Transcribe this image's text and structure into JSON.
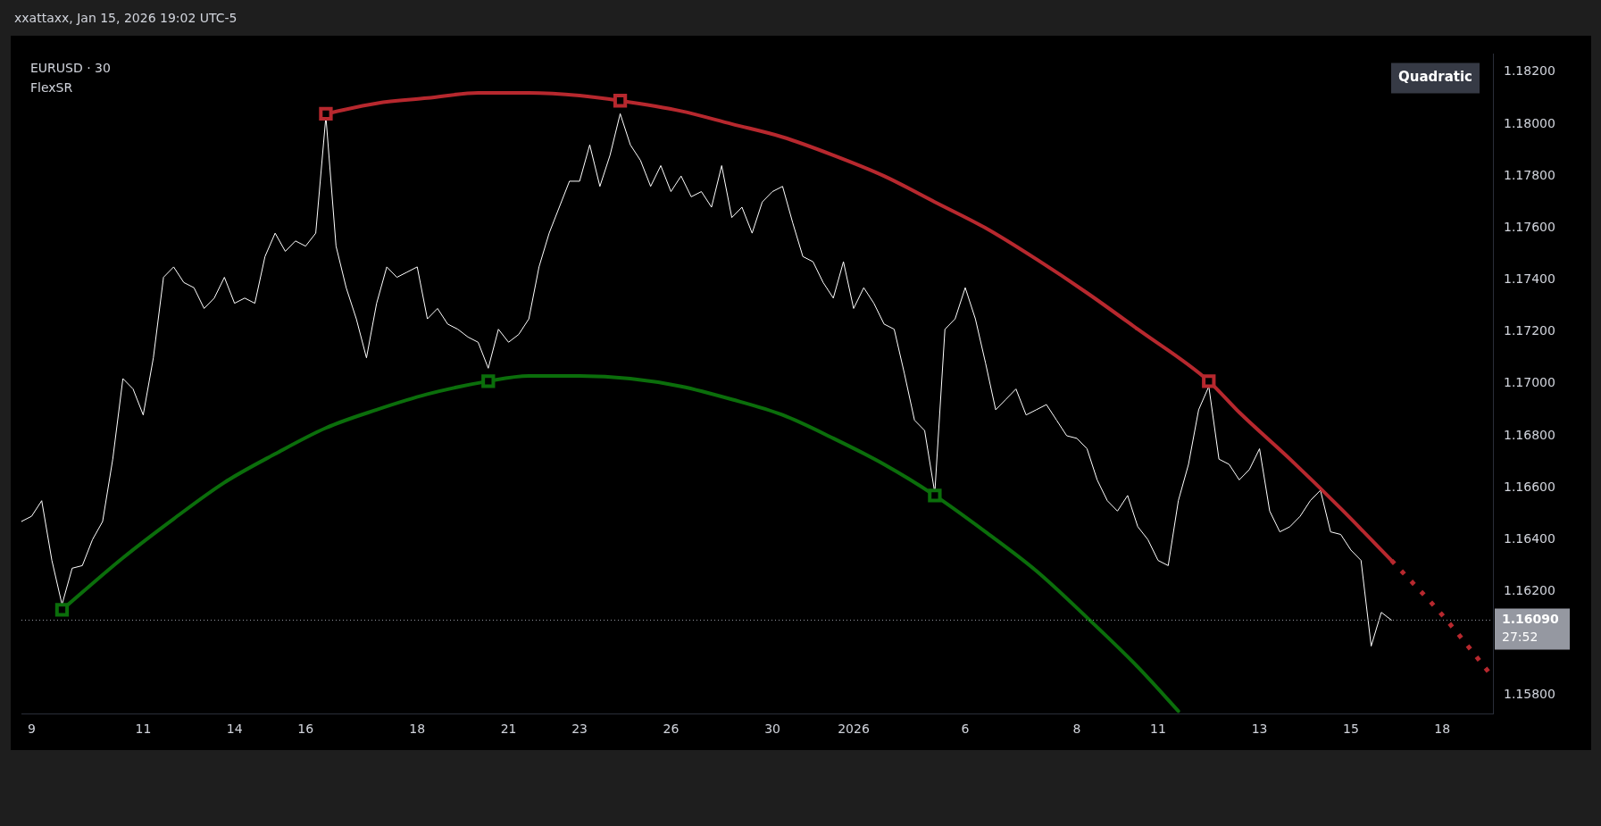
{
  "chart_data": {
    "type": "line",
    "title": "EURUSD · 30",
    "subtitle": "FlexSR",
    "annotations": [
      "xxattaxx, Jan 15, 2026 19:02 UTC-5",
      "Quadratic",
      "27:52"
    ],
    "categories": [
      null,
      "9",
      null,
      null,
      null,
      null,
      null,
      null,
      null,
      null,
      null,
      null,
      "11",
      null,
      null,
      null,
      null,
      null,
      null,
      null,
      null,
      "14",
      null,
      null,
      null,
      null,
      null,
      null,
      "16",
      null,
      null,
      null,
      null,
      null,
      null,
      null,
      null,
      null,
      null,
      "18",
      null,
      null,
      null,
      null,
      null,
      null,
      null,
      null,
      "21",
      null,
      null,
      null,
      null,
      null,
      null,
      "23",
      null,
      null,
      null,
      null,
      null,
      null,
      null,
      null,
      "26",
      null,
      null,
      null,
      null,
      null,
      null,
      null,
      null,
      null,
      "30",
      null,
      null,
      null,
      null,
      null,
      null,
      null,
      "2026",
      null,
      null,
      null,
      null,
      null,
      null,
      null,
      null,
      null,
      null,
      "6",
      null,
      null,
      null,
      null,
      null,
      null,
      null,
      null,
      null,
      null,
      "8",
      null,
      null,
      null,
      null,
      null,
      null,
      null,
      "11",
      null,
      null,
      null,
      null,
      null,
      null,
      null,
      null,
      null,
      "13",
      null,
      null,
      null,
      null,
      null,
      null,
      null,
      null,
      "15",
      null,
      null,
      null,
      null,
      null,
      null,
      null,
      null,
      "18",
      null,
      null,
      null,
      null,
      null
    ],
    "series": [
      {
        "color": "#ffffff",
        "values": [
          1.1647,
          1.1649,
          1.1655,
          1.1632,
          1.1615,
          1.1629,
          1.163,
          1.164,
          1.1647,
          1.1671,
          1.1702,
          1.1698,
          1.1688,
          1.171,
          1.1741,
          1.1745,
          1.1739,
          1.1737,
          1.1729,
          1.1733,
          1.1741,
          1.1731,
          1.1733,
          1.1731,
          1.1749,
          1.1758,
          1.1751,
          1.1755,
          1.1753,
          1.1758,
          1.1803,
          1.1753,
          1.1737,
          1.1725,
          1.171,
          1.1731,
          1.1745,
          1.1741,
          1.1743,
          1.1745,
          1.1725,
          1.1729,
          1.1723,
          1.1721,
          1.1718,
          1.1716,
          1.1706,
          1.1721,
          1.1716,
          1.1719,
          1.1725,
          1.1745,
          1.1758,
          1.1768,
          1.1778,
          1.1778,
          1.1792,
          1.1776,
          1.1788,
          1.1804,
          1.1792,
          1.1786,
          1.1776,
          1.1784,
          1.1774,
          1.178,
          1.1772,
          1.1774,
          1.1768,
          1.1784,
          1.1764,
          1.1768,
          1.1758,
          1.177,
          1.1774,
          1.1776,
          1.1762,
          1.1749,
          1.1747,
          1.1739,
          1.1733,
          1.1747,
          1.1729,
          1.1737,
          1.1731,
          1.1723,
          1.1721,
          1.1704,
          1.1686,
          1.1682,
          1.1658,
          1.1721,
          1.1725,
          1.1737,
          1.1725,
          1.1708,
          1.169,
          1.1694,
          1.1698,
          1.1688,
          1.169,
          1.1692,
          1.1686,
          1.168,
          1.1679,
          1.1675,
          1.1663,
          1.1655,
          1.1651,
          1.1657,
          1.1645,
          1.164,
          1.1632,
          1.163,
          1.1655,
          1.1669,
          1.169,
          1.1699,
          1.1671,
          1.1669,
          1.1663,
          1.1667,
          1.1675,
          1.1651,
          1.1643,
          1.1645,
          1.1649,
          1.1655,
          1.1659,
          1.1643,
          1.1642,
          1.1636,
          1.1632,
          1.1599,
          1.1612,
          1.1609,
          null,
          null,
          null,
          null,
          null,
          null,
          null,
          null,
          null,
          null
        ]
      },
      {
        "type": "line",
        "color": "#b7282e",
        "line_style": "solid",
        "values": [
          null,
          null,
          null,
          null,
          null,
          null,
          null,
          null,
          null,
          null,
          null,
          null,
          null,
          null,
          null,
          null,
          null,
          null,
          null,
          null,
          null,
          null,
          null,
          null,
          null,
          null,
          null,
          null,
          null,
          null,
          1.1804,
          null,
          null,
          null,
          null,
          1.1808,
          null,
          null,
          null,
          null,
          1.181,
          null,
          null,
          null,
          null,
          1.1812,
          null,
          null,
          null,
          null,
          1.1812,
          null,
          null,
          null,
          null,
          1.1811,
          null,
          null,
          null,
          1.1809,
          null,
          null,
          null,
          null,
          null,
          1.1805,
          null,
          null,
          null,
          null,
          1.18,
          null,
          null,
          null,
          null,
          1.1795,
          null,
          null,
          null,
          null,
          1.1788,
          null,
          null,
          null,
          null,
          1.178,
          null,
          null,
          null,
          null,
          1.177,
          null,
          null,
          null,
          null,
          1.176,
          null,
          null,
          null,
          null,
          1.1748,
          null,
          null,
          null,
          null,
          1.1735,
          null,
          null,
          null,
          null,
          1.1721,
          null,
          null,
          null,
          null,
          null,
          null,
          1.1701,
          null,
          null,
          1.1689,
          null,
          null,
          null,
          null,
          1.1671,
          null,
          null,
          null,
          null,
          1.1652,
          null,
          null,
          null,
          null,
          1.1632,
          null,
          null,
          null,
          null,
          null,
          null,
          null,
          null,
          null,
          null
        ]
      },
      {
        "type": "line",
        "color": "#b7282e",
        "line_style": "dotted",
        "values": [
          null,
          null,
          null,
          null,
          null,
          null,
          null,
          null,
          null,
          null,
          null,
          null,
          null,
          null,
          null,
          null,
          null,
          null,
          null,
          null,
          null,
          null,
          null,
          null,
          null,
          null,
          null,
          null,
          null,
          null,
          null,
          null,
          null,
          null,
          null,
          null,
          null,
          null,
          null,
          null,
          null,
          null,
          null,
          null,
          null,
          null,
          null,
          null,
          null,
          null,
          null,
          null,
          null,
          null,
          null,
          null,
          null,
          null,
          null,
          null,
          null,
          null,
          null,
          null,
          null,
          null,
          null,
          null,
          null,
          null,
          null,
          null,
          null,
          null,
          null,
          null,
          null,
          null,
          null,
          null,
          null,
          null,
          null,
          null,
          null,
          null,
          null,
          null,
          null,
          null,
          null,
          null,
          null,
          null,
          null,
          null,
          null,
          null,
          null,
          null,
          null,
          null,
          null,
          null,
          null,
          null,
          null,
          null,
          null,
          null,
          null,
          null,
          null,
          null,
          null,
          null,
          null,
          null,
          null,
          null,
          null,
          null,
          null,
          null,
          null,
          null,
          null,
          null,
          null,
          null,
          null,
          null,
          null,
          null,
          null,
          1.1632,
          null,
          null,
          null,
          null,
          1.1611,
          null,
          null,
          null,
          null,
          1.1587
        ]
      },
      {
        "type": "line",
        "color": "#0b6e0b",
        "line_style": "solid",
        "values": [
          null,
          null,
          null,
          null,
          1.1613,
          null,
          null,
          null,
          null,
          null,
          1.1633,
          null,
          null,
          null,
          null,
          1.1648,
          null,
          null,
          null,
          null,
          1.1662,
          null,
          null,
          null,
          null,
          1.1673,
          null,
          null,
          null,
          null,
          1.1683,
          null,
          null,
          null,
          null,
          1.169,
          null,
          null,
          null,
          null,
          1.1696,
          null,
          null,
          null,
          null,
          null,
          1.1701,
          null,
          null,
          null,
          1.1703,
          null,
          null,
          null,
          null,
          1.1703,
          null,
          null,
          null,
          null,
          1.1702,
          null,
          null,
          null,
          null,
          1.1699,
          null,
          null,
          null,
          null,
          1.1694,
          null,
          null,
          null,
          null,
          1.1688,
          null,
          null,
          null,
          null,
          1.1679,
          null,
          null,
          null,
          null,
          1.1669,
          null,
          null,
          null,
          null,
          1.1657,
          null,
          null,
          null,
          null,
          1.1643,
          null,
          null,
          null,
          null,
          1.1628,
          null,
          null,
          null,
          null,
          1.161,
          null,
          null,
          null,
          null,
          1.1591,
          null,
          null,
          null,
          1.1574,
          null,
          null,
          null,
          null,
          null,
          null,
          null,
          null,
          null,
          null,
          null,
          null,
          null,
          null,
          null,
          null,
          null,
          null,
          null,
          null,
          null,
          null,
          null,
          null,
          null,
          null,
          null,
          null,
          null,
          null,
          null
        ]
      },
      {
        "type": "scatter",
        "marker": "square",
        "color": "#b7282e",
        "values": [
          null,
          null,
          null,
          null,
          null,
          null,
          null,
          null,
          null,
          null,
          null,
          null,
          null,
          null,
          null,
          null,
          null,
          null,
          null,
          null,
          null,
          null,
          null,
          null,
          null,
          null,
          null,
          null,
          null,
          null,
          1.1804,
          null,
          null,
          null,
          null,
          null,
          null,
          null,
          null,
          null,
          null,
          null,
          null,
          null,
          null,
          null,
          null,
          null,
          null,
          null,
          null,
          null,
          null,
          null,
          null,
          null,
          null,
          null,
          null,
          1.1809,
          null,
          null,
          null,
          null,
          null,
          null,
          null,
          null,
          null,
          null,
          null,
          null,
          null,
          null,
          null,
          null,
          null,
          null,
          null,
          null,
          null,
          null,
          null,
          null,
          null,
          null,
          null,
          null,
          null,
          null,
          null,
          null,
          null,
          null,
          null,
          null,
          null,
          null,
          null,
          null,
          null,
          null,
          null,
          null,
          null,
          null,
          null,
          null,
          null,
          null,
          null,
          null,
          null,
          null,
          null,
          null,
          null,
          1.1701,
          null,
          null,
          null,
          null,
          null,
          null,
          null,
          null,
          null,
          null,
          null,
          null,
          null,
          null,
          null,
          null,
          null,
          null,
          null,
          null,
          null,
          null,
          null,
          null,
          null,
          null,
          null,
          null
        ]
      },
      {
        "type": "scatter",
        "marker": "square",
        "color": "#0b6e0b",
        "values": [
          null,
          null,
          null,
          null,
          1.1613,
          null,
          null,
          null,
          null,
          null,
          null,
          null,
          null,
          null,
          null,
          null,
          null,
          null,
          null,
          null,
          null,
          null,
          null,
          null,
          null,
          null,
          null,
          null,
          null,
          null,
          null,
          null,
          null,
          null,
          null,
          null,
          null,
          null,
          null,
          null,
          null,
          null,
          null,
          null,
          null,
          null,
          1.1701,
          null,
          null,
          null,
          null,
          null,
          null,
          null,
          null,
          null,
          null,
          null,
          null,
          null,
          null,
          null,
          null,
          null,
          null,
          null,
          null,
          null,
          null,
          null,
          null,
          null,
          null,
          null,
          null,
          null,
          null,
          null,
          null,
          null,
          null,
          null,
          null,
          null,
          null,
          null,
          null,
          null,
          null,
          null,
          1.1657,
          null,
          null,
          null,
          null,
          null,
          null,
          null,
          null,
          null,
          null,
          null,
          null,
          null,
          null,
          null,
          null,
          null,
          null,
          null,
          null,
          null,
          null,
          null,
          null,
          null,
          null,
          null,
          null,
          null,
          null,
          null,
          null,
          null,
          null,
          null,
          null,
          null,
          null,
          null,
          null,
          null,
          null,
          null,
          null,
          null,
          null,
          null,
          null,
          null,
          null,
          null,
          null,
          null,
          null,
          null
        ]
      }
    ],
    "ref_lines": [
      {
        "axis": "y",
        "value": 1.1609,
        "label": "1.16090",
        "color": "#9598a1",
        "line_style": "dotted"
      }
    ],
    "ylim": [
      1.1573,
      1.1827
    ],
    "yticks": [
      {
        "value": 1.158,
        "label": "1.15800"
      },
      {
        "value": 1.162,
        "label": "1.16200"
      },
      {
        "value": 1.164,
        "label": "1.16400"
      },
      {
        "value": 1.166,
        "label": "1.16600"
      },
      {
        "value": 1.168,
        "label": "1.16800"
      },
      {
        "value": 1.17,
        "label": "1.17000"
      },
      {
        "value": 1.172,
        "label": "1.17200"
      },
      {
        "value": 1.174,
        "label": "1.17400"
      },
      {
        "value": 1.176,
        "label": "1.17600"
      },
      {
        "value": 1.178,
        "label": "1.17800"
      },
      {
        "value": 1.18,
        "label": "1.18000"
      },
      {
        "value": 1.182,
        "label": "1.18200"
      }
    ]
  }
}
